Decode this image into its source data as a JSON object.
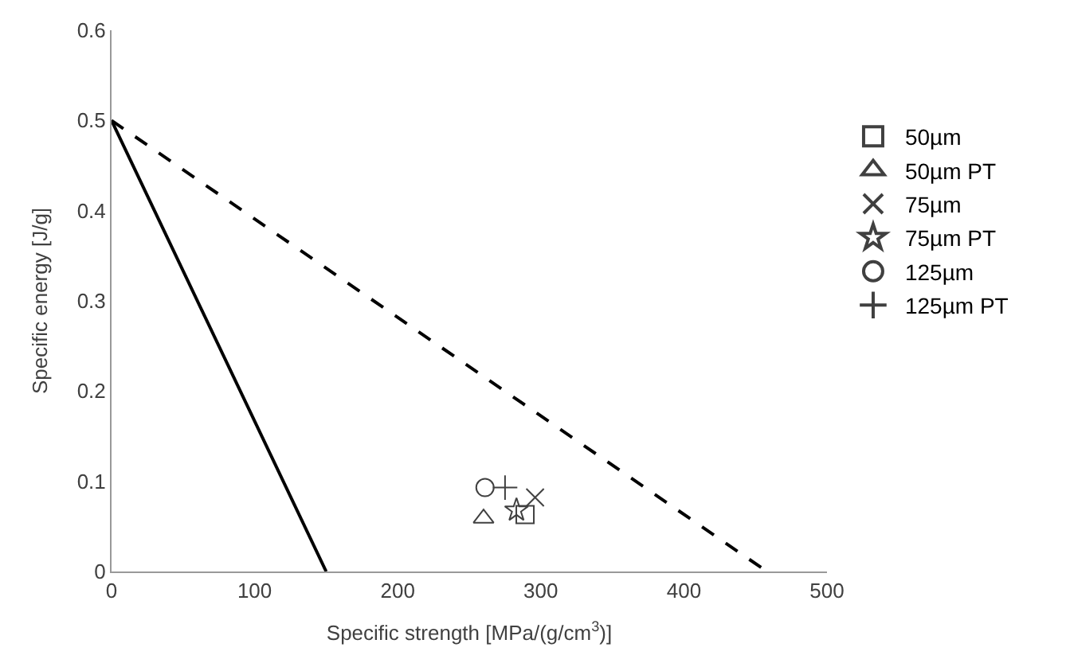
{
  "chart_data": {
    "type": "scatter",
    "xlabel": "Specific strength [MPa/(g/cm$^{3}$)]",
    "ylabel": "Specific energy [J/g]",
    "xlim": [
      0,
      500
    ],
    "xticks": [
      0,
      100,
      200,
      300,
      400,
      500
    ],
    "ylim": [
      0,
      0.6
    ],
    "yticks": [
      0,
      0.1,
      0.2,
      0.3,
      0.4,
      0.5,
      0.6
    ],
    "grid": false,
    "legend": "right",
    "series": [
      {
        "type": "line",
        "x": [
          0,
          150
        ],
        "values": [
          0.5,
          0
        ],
        "color": "#000000",
        "line_style": "solid",
        "marker": "none"
      },
      {
        "type": "line",
        "x": [
          0,
          458
        ],
        "values": [
          0.5,
          0
        ],
        "color": "#000000",
        "line_style": "dashed",
        "marker": "none"
      },
      {
        "name": "50µm",
        "x": [
          289
        ],
        "values": [
          0.063
        ],
        "color": "#404040",
        "marker": "square"
      },
      {
        "name": "50µm PT",
        "x": [
          260
        ],
        "values": [
          0.059
        ],
        "color": "#404040",
        "marker": "triangle"
      },
      {
        "name": "75µm",
        "x": [
          296
        ],
        "values": [
          0.082
        ],
        "color": "#404040",
        "marker": "cross"
      },
      {
        "name": "75µm PT",
        "x": [
          283
        ],
        "values": [
          0.068
        ],
        "color": "#404040",
        "marker": "star"
      },
      {
        "name": "125µm",
        "x": [
          261
        ],
        "values": [
          0.093
        ],
        "color": "#404040",
        "marker": "circle"
      },
      {
        "name": "125µm PT",
        "x": [
          275
        ],
        "values": [
          0.093
        ],
        "color": "#404040",
        "marker": "plus"
      }
    ]
  }
}
